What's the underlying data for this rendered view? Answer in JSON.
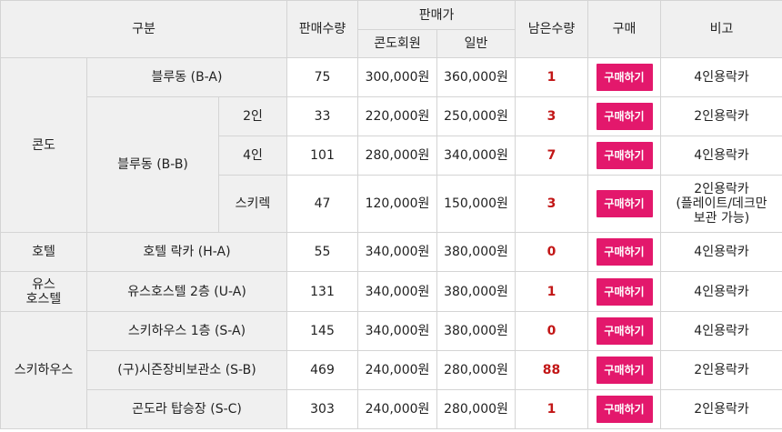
{
  "header": {
    "category": "구분",
    "sales_qty": "판매수량",
    "price": "판매가",
    "condo_member": "콘도회원",
    "general": "일반",
    "remaining": "남은수량",
    "buy": "구매",
    "note": "비고"
  },
  "buy_label": "구매하기",
  "colors": {
    "buy_button": "#e3186c",
    "remaining_text": "#c21616",
    "header_bg": "#f0f0f0"
  },
  "groups": {
    "condo": "콘도",
    "hotel": "호텔",
    "youth_hostel_line1": "유스",
    "youth_hostel_line2": "호스텔",
    "ski_house": "스키하우스"
  },
  "rows": [
    {
      "name": "블루동 (B-A)",
      "sub": "",
      "qty": "75",
      "member": "300,000원",
      "general": "360,000원",
      "remaining": "1",
      "note": "4인용락카"
    },
    {
      "name": "블루동 (B-B)",
      "sub": "2인",
      "qty": "33",
      "member": "220,000원",
      "general": "250,000원",
      "remaining": "3",
      "note": "2인용락카"
    },
    {
      "name": "",
      "sub": "4인",
      "qty": "101",
      "member": "280,000원",
      "general": "340,000원",
      "remaining": "7",
      "note": "4인용락카"
    },
    {
      "name": "",
      "sub": "스키렉",
      "qty": "47",
      "member": "120,000원",
      "general": "150,000원",
      "remaining": "3",
      "note_lines": [
        "2인용락카",
        "(플레이트/데크만",
        "보관 가능)"
      ]
    },
    {
      "name": "호텔 락카 (H-A)",
      "sub": "",
      "qty": "55",
      "member": "340,000원",
      "general": "380,000원",
      "remaining": "0",
      "note": "4인용락카"
    },
    {
      "name": "유스호스텔 2층 (U-A)",
      "sub": "",
      "qty": "131",
      "member": "340,000원",
      "general": "380,000원",
      "remaining": "1",
      "note": "4인용락카"
    },
    {
      "name": "스키하우스 1층 (S-A)",
      "sub": "",
      "qty": "145",
      "member": "340,000원",
      "general": "380,000원",
      "remaining": "0",
      "note": "4인용락카"
    },
    {
      "name": "(구)시즌장비보관소 (S-B)",
      "sub": "",
      "qty": "469",
      "member": "240,000원",
      "general": "280,000원",
      "remaining": "88",
      "note": "2인용락카"
    },
    {
      "name": "곤도라 탑승장 (S-C)",
      "sub": "",
      "qty": "303",
      "member": "240,000원",
      "general": "280,000원",
      "remaining": "1",
      "note": "2인용락카"
    }
  ]
}
